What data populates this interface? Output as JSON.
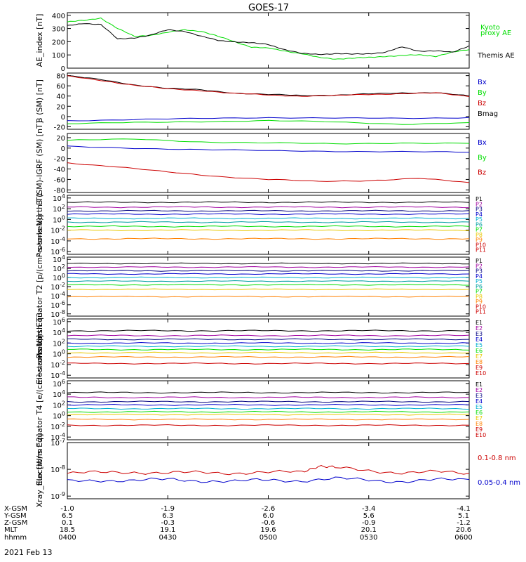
{
  "title": "GOES-17",
  "date_label": "2021 Feb 13",
  "colors": {
    "green": "#00dd00",
    "blue": "#0000cc",
    "red": "#cc0000",
    "black": "#000000",
    "orange": "#ff8000",
    "yellow": "#e8c800",
    "cyan": "#00b0d0",
    "navy": "#000080",
    "purple": "#a000a0",
    "teal": "#00a0a0"
  },
  "ephemeris": {
    "labels": [
      "X-GSM",
      "Y-GSM",
      "Z-GSM",
      "MLT",
      "hhmm"
    ],
    "columns": [
      [
        "-1.0",
        "6.5",
        "0.1",
        "18.5",
        "0400"
      ],
      [
        "-1.9",
        "6.3",
        "-0.3",
        "19.1",
        "0430"
      ],
      [
        "-2.6",
        "6.0",
        "-0.6",
        "19.6",
        "0500"
      ],
      [
        "-3.4",
        "5.6",
        "-0.9",
        "20.1",
        "0530"
      ],
      [
        "-4.1",
        "5.1",
        "-1.2",
        "20.6",
        "0600"
      ]
    ]
  },
  "chart_data": [
    {
      "type": "line",
      "ylabel": "AE_index [nT]",
      "yticks": [
        "400",
        "300",
        "200",
        "100",
        "0"
      ],
      "ylim": [
        0,
        420
      ],
      "legend": [
        {
          "text": "Kyoto",
          "color": "#00dd00"
        },
        {
          "text": "proxy AE",
          "color": "#00dd00"
        },
        {
          "text": "Themis AE",
          "color": "#000000"
        }
      ],
      "series": [
        {
          "name": "Kyoto proxy AE",
          "color": "#00dd00",
          "x": [
            0,
            5,
            10,
            15,
            20,
            25,
            30,
            35,
            40,
            45,
            50,
            55,
            60,
            65,
            70,
            75,
            80,
            85,
            90,
            95,
            100,
            105,
            110,
            115,
            120
          ],
          "y": [
            350,
            360,
            380,
            300,
            240,
            250,
            270,
            290,
            280,
            240,
            200,
            160,
            150,
            130,
            110,
            80,
            70,
            75,
            80,
            90,
            95,
            100,
            90,
            120,
            140
          ]
        },
        {
          "name": "Themis AE",
          "color": "#000000",
          "x": [
            0,
            5,
            10,
            15,
            20,
            25,
            30,
            35,
            40,
            45,
            50,
            55,
            60,
            65,
            70,
            75,
            80,
            85,
            90,
            95,
            100,
            105,
            110,
            115,
            120
          ],
          "y": [
            320,
            340,
            330,
            220,
            230,
            250,
            290,
            280,
            240,
            210,
            200,
            190,
            180,
            140,
            110,
            105,
            110,
            105,
            110,
            120,
            160,
            130,
            130,
            120,
            170
          ]
        }
      ]
    },
    {
      "type": "line",
      "ylabel": "B (SM) [nT]",
      "yticks": [
        "80",
        "60",
        "40",
        "20",
        "0",
        "-20"
      ],
      "ylim": [
        -25,
        85
      ],
      "legend": [
        {
          "text": "Bx",
          "color": "#0000cc"
        },
        {
          "text": "By",
          "color": "#00dd00"
        },
        {
          "text": "Bz",
          "color": "#cc0000"
        },
        {
          "text": "Bmag",
          "color": "#000000"
        }
      ],
      "series": [
        {
          "name": "Bmag",
          "color": "#000000",
          "x": [
            0,
            10,
            20,
            30,
            40,
            50,
            60,
            70,
            80,
            90,
            100,
            110,
            120
          ],
          "y": [
            80,
            72,
            62,
            55,
            52,
            46,
            43,
            41,
            42,
            44,
            46,
            47,
            40
          ]
        },
        {
          "name": "Bz",
          "color": "#cc0000",
          "x": [
            0,
            10,
            20,
            30,
            40,
            50,
            60,
            70,
            80,
            90,
            100,
            110,
            120
          ],
          "y": [
            79,
            71,
            61,
            54,
            51,
            45,
            42,
            40,
            41,
            43,
            45,
            46,
            39
          ]
        },
        {
          "name": "Bx",
          "color": "#0000cc",
          "x": [
            0,
            20,
            40,
            60,
            80,
            100,
            120
          ],
          "y": [
            -8,
            -6,
            -4,
            -2,
            -3,
            -4,
            -2
          ]
        },
        {
          "name": "By",
          "color": "#00dd00",
          "x": [
            0,
            20,
            40,
            60,
            80,
            100,
            120
          ],
          "y": [
            -14,
            -12,
            -10,
            -8,
            -11,
            -15,
            -12
          ]
        }
      ]
    },
    {
      "type": "line",
      "ylabel": "B (SM)-IGRF (SM) [nT]",
      "yticks": [
        "20",
        "0",
        "-20",
        "-40",
        "-60",
        "-80"
      ],
      "ylim": [
        -85,
        28
      ],
      "legend": [
        {
          "text": "Bx",
          "color": "#0000cc"
        },
        {
          "text": "By",
          "color": "#00dd00"
        },
        {
          "text": "Bz",
          "color": "#cc0000"
        }
      ],
      "series": [
        {
          "name": "By",
          "color": "#00dd00",
          "x": [
            0,
            20,
            40,
            60,
            80,
            100,
            120
          ],
          "y": [
            15,
            17,
            12,
            10,
            8,
            10,
            9
          ]
        },
        {
          "name": "Bx",
          "color": "#0000cc",
          "x": [
            0,
            20,
            40,
            60,
            80,
            100,
            120
          ],
          "y": [
            3,
            0,
            -3,
            -5,
            -6,
            -7,
            -8
          ]
        },
        {
          "name": "Bz",
          "color": "#cc0000",
          "x": [
            0,
            15,
            30,
            45,
            60,
            75,
            90,
            105,
            120
          ],
          "y": [
            -28,
            -36,
            -46,
            -54,
            -60,
            -64,
            -62,
            -58,
            -66
          ]
        }
      ]
    },
    {
      "type": "line",
      "scale": "log",
      "ylabel": "Protons North T1",
      "yticks": [
        "10^4",
        "10^2",
        "10^0",
        "10^-2",
        "10^-4",
        "10^-6"
      ],
      "ylim": [
        -6.5,
        4.5
      ],
      "legend_labels": [
        "P1",
        "P2",
        "P3",
        "P4",
        "P5",
        "P6",
        "P7",
        "P8",
        "P9",
        "P10",
        "P11"
      ],
      "legend_colors": [
        "#000000",
        "#a000a0",
        "#000080",
        "#0000cc",
        "#00b0d0",
        "#00a0a0",
        "#00dd00",
        "#e8c800",
        "#ff8000",
        "#cc0000",
        "#cc0000"
      ],
      "levels": [
        3.2,
        2.3,
        1.6,
        1.0,
        0.2,
        -0.5,
        -1.3,
        -2.0,
        -3.6
      ]
    },
    {
      "type": "line",
      "scale": "log",
      "ylabel": "Protons Equator T2 [p/(cm²-s-sr-keV)]",
      "yticks": [
        "10^4",
        "10^2",
        "10^0",
        "10^-2",
        "10^-4",
        "10^-6",
        "10^-8"
      ],
      "ylim": [
        -8.5,
        4.5
      ],
      "legend_labels": [
        "P1",
        "P2",
        "P3",
        "P4",
        "P5",
        "P6",
        "P7",
        "P8",
        "P9",
        "P10",
        "P11"
      ],
      "legend_colors": [
        "#000000",
        "#a000a0",
        "#000080",
        "#0000cc",
        "#00b0d0",
        "#00a0a0",
        "#00dd00",
        "#e8c800",
        "#ff8000",
        "#cc0000",
        "#cc0000"
      ],
      "levels": [
        3.1,
        2.3,
        1.5,
        0.8,
        0.0,
        -0.8,
        -1.6,
        -2.6,
        -4.2
      ]
    },
    {
      "type": "line",
      "scale": "log",
      "ylabel": "Electrons North T3",
      "yticks": [
        "10^6",
        "10^4",
        "10^2",
        "10^0",
        "10^-2",
        "10^-4"
      ],
      "ylim": [
        -4.5,
        6.5
      ],
      "legend_labels": [
        "E1",
        "E2",
        "E3",
        "E4",
        "E5",
        "E6",
        "E7",
        "E8",
        "E9",
        "E10"
      ],
      "legend_colors": [
        "#000000",
        "#a000a0",
        "#000080",
        "#0000cc",
        "#00b0d0",
        "#00dd00",
        "#e8c800",
        "#ff8000",
        "#cc0000",
        "#cc0000"
      ],
      "levels": [
        4.3,
        3.4,
        2.7,
        2.0,
        1.4,
        0.8,
        0.2,
        -0.6,
        -1.8
      ]
    },
    {
      "type": "line",
      "scale": "log",
      "ylabel": "Electrons Equator T4 [e/(cm²-s-sr-keV)]",
      "yticks": [
        "10^6",
        "10^4",
        "10^2",
        "10^0",
        "10^-2",
        "10^-4"
      ],
      "ylim": [
        -4.5,
        6.5
      ],
      "legend_labels": [
        "E1",
        "E2",
        "E3",
        "E4",
        "E5",
        "E6",
        "E7",
        "E8",
        "E9",
        "E10"
      ],
      "legend_colors": [
        "#000000",
        "#a000a0",
        "#000080",
        "#0000cc",
        "#00b0d0",
        "#00dd00",
        "#e8c800",
        "#ff8000",
        "#cc0000",
        "#cc0000"
      ],
      "levels": [
        4.3,
        3.4,
        2.6,
        2.0,
        1.3,
        0.7,
        0.2,
        -0.7,
        -1.8
      ]
    },
    {
      "type": "line",
      "scale": "log",
      "ylabel": "Xray_flux [W/m^2]",
      "yticks": [
        "10^-7",
        "10^-8",
        "10^-9"
      ],
      "ylim": [
        -9.1,
        -7.0
      ],
      "legend": [
        {
          "text": "0.1-0.8 nm",
          "color": "#cc0000"
        },
        {
          "text": "0.05-0.4 nm",
          "color": "#0000cc"
        }
      ],
      "series": [
        {
          "name": "0.1-0.8 nm",
          "color": "#cc0000",
          "x": [
            0,
            10,
            20,
            30,
            40,
            50,
            60,
            70,
            75,
            80,
            90,
            100,
            110,
            120
          ],
          "y": [
            -8.15,
            -8.12,
            -8.1,
            -8.14,
            -8.12,
            -8.13,
            -8.12,
            -8.1,
            -7.85,
            -7.95,
            -8.05,
            -8.12,
            -8.1,
            -8.15
          ]
        },
        {
          "name": "0.05-0.4 nm",
          "color": "#0000cc",
          "x": [
            0,
            10,
            20,
            30,
            40,
            50,
            60,
            70,
            80,
            90,
            100,
            110,
            120
          ],
          "y": [
            -8.45,
            -8.4,
            -8.42,
            -8.38,
            -8.42,
            -8.45,
            -8.4,
            -8.42,
            -8.35,
            -8.4,
            -8.45,
            -8.4,
            -8.38
          ]
        }
      ]
    }
  ]
}
